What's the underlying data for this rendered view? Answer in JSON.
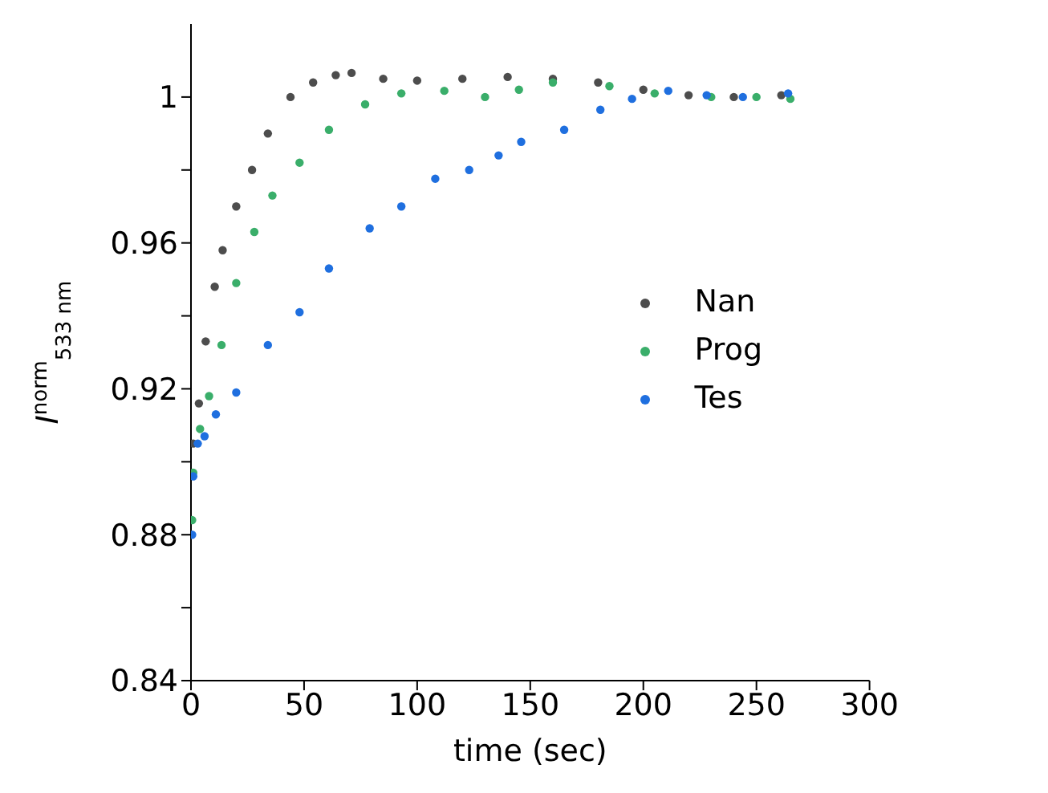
{
  "chart_data": {
    "type": "scatter",
    "xlabel": "time (sec)",
    "ylabel": "I$^{norm}$$_{533 nm}$",
    "xlim": [
      0,
      300
    ],
    "xticks": [
      0,
      50,
      100,
      150,
      200,
      250,
      300
    ],
    "ylim": [
      0.84,
      1.02
    ],
    "yticks": [
      0.84,
      {
        "value": 0.86,
        "label": null
      },
      0.88,
      {
        "value": 0.9,
        "label": null
      },
      0.92,
      {
        "value": 0.94,
        "label": null
      },
      0.96,
      {
        "value": 0.98,
        "label": null
      },
      1
    ],
    "grid": false,
    "legend": "right",
    "marker": "circle",
    "series": [
      {
        "name": "Nan",
        "color": "#4d4d4d",
        "x": [
          1,
          3.5,
          6.5,
          10.5,
          14,
          20,
          27,
          34,
          44,
          54,
          64,
          71,
          85,
          100,
          120,
          140,
          160,
          180,
          200,
          220,
          240,
          261
        ],
        "values": [
          0.905,
          0.916,
          0.933,
          0.948,
          0.958,
          0.97,
          0.98,
          0.99,
          1,
          1.004,
          1.006,
          1.0066,
          1.005,
          1.0045,
          1.005,
          1.0055,
          1.005,
          1.004,
          1.002,
          1.0005,
          1,
          1.0005
        ]
      },
      {
        "name": "Prog",
        "color": "#3aae6a",
        "x": [
          0.5,
          1,
          4,
          8,
          13.5,
          20,
          28,
          36,
          48,
          61,
          77,
          93,
          112,
          130,
          145,
          160,
          185,
          205,
          230,
          250,
          265
        ],
        "values": [
          0.884,
          0.897,
          0.909,
          0.918,
          0.932,
          0.949,
          0.963,
          0.973,
          0.982,
          0.991,
          0.998,
          1.001,
          1.0017,
          1,
          1.002,
          1.004,
          1.003,
          1.001,
          1,
          1,
          0.9995
        ]
      },
      {
        "name": "Tes",
        "color": "#1f6fdf",
        "x": [
          0.5,
          1,
          3,
          6,
          11,
          20,
          34,
          48,
          61,
          79,
          93,
          108,
          123,
          136,
          146,
          165,
          181,
          195,
          211,
          228,
          244,
          264
        ],
        "values": [
          0.88,
          0.896,
          0.905,
          0.907,
          0.913,
          0.919,
          0.932,
          0.941,
          0.953,
          0.964,
          0.97,
          0.9776,
          0.98,
          0.984,
          0.9877,
          0.991,
          0.9965,
          0.9995,
          1.0017,
          1.0005,
          1,
          1.001
        ]
      }
    ]
  }
}
